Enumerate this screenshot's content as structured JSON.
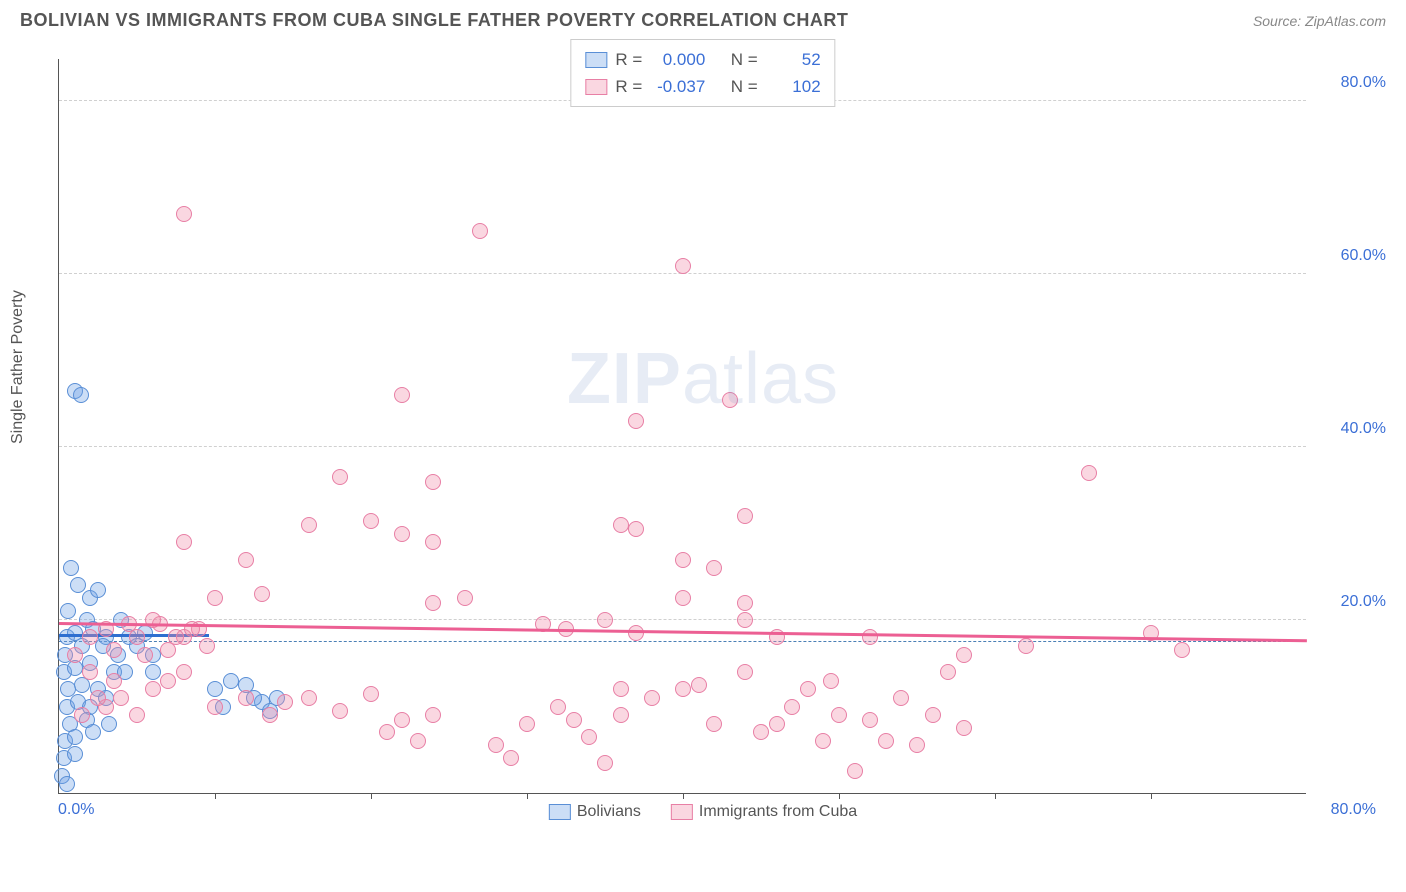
{
  "title": "BOLIVIAN VS IMMIGRANTS FROM CUBA SINGLE FATHER POVERTY CORRELATION CHART",
  "source": "Source: ZipAtlas.com",
  "ylabel": "Single Father Poverty",
  "watermark_a": "ZIP",
  "watermark_b": "atlas",
  "chart": {
    "type": "scatter",
    "xlim": [
      0,
      80
    ],
    "ylim": [
      0,
      85
    ],
    "ytick_values": [
      20,
      40,
      60,
      80
    ],
    "ytick_labels": [
      "20.0%",
      "40.0%",
      "60.0%",
      "80.0%"
    ],
    "xtick_values": [
      10,
      20,
      30,
      40,
      50,
      60,
      70
    ],
    "xaxis_start": "0.0%",
    "xaxis_end": "80.0%",
    "axis_label_color": "#3b6fd6",
    "grid_color": "#d0d0d0",
    "background_color": "#ffffff",
    "marker_radius": 8,
    "dash_y": 17.5,
    "series": [
      {
        "name": "Bolivians",
        "fill": "rgba(110,160,230,0.35)",
        "stroke": "#5a8fd6",
        "R": "0.000",
        "N": "52",
        "trend": {
          "y1": 18.0,
          "y2": 18.0,
          "x2_frac": 0.12,
          "color": "#2e6fd0",
          "width": 3
        },
        "points": [
          [
            1.0,
            46.5
          ],
          [
            1.4,
            46.0
          ],
          [
            0.8,
            26.0
          ],
          [
            1.2,
            24.0
          ],
          [
            2.0,
            22.5
          ],
          [
            2.5,
            23.5
          ],
          [
            0.6,
            21.0
          ],
          [
            1.8,
            20.0
          ],
          [
            0.5,
            18.0
          ],
          [
            1.0,
            18.5
          ],
          [
            2.2,
            19.0
          ],
          [
            3.0,
            18.0
          ],
          [
            0.4,
            16.0
          ],
          [
            1.5,
            17.0
          ],
          [
            2.8,
            17.0
          ],
          [
            0.3,
            14.0
          ],
          [
            1.0,
            14.5
          ],
          [
            2.0,
            15.0
          ],
          [
            3.5,
            14.0
          ],
          [
            0.6,
            12.0
          ],
          [
            1.5,
            12.5
          ],
          [
            2.5,
            12.0
          ],
          [
            0.5,
            10.0
          ],
          [
            1.2,
            10.5
          ],
          [
            2.0,
            10.0
          ],
          [
            3.0,
            11.0
          ],
          [
            0.7,
            8.0
          ],
          [
            1.8,
            8.5
          ],
          [
            0.4,
            6.0
          ],
          [
            1.0,
            6.5
          ],
          [
            2.2,
            7.0
          ],
          [
            3.2,
            8.0
          ],
          [
            0.3,
            4.0
          ],
          [
            1.0,
            4.5
          ],
          [
            0.2,
            2.0
          ],
          [
            0.5,
            1.0
          ],
          [
            4.0,
            20.0
          ],
          [
            4.5,
            18.0
          ],
          [
            3.8,
            16.0
          ],
          [
            4.2,
            14.0
          ],
          [
            5.0,
            17.0
          ],
          [
            5.5,
            18.5
          ],
          [
            6.0,
            16.0
          ],
          [
            6.0,
            14.0
          ],
          [
            10.0,
            12.0
          ],
          [
            10.5,
            10.0
          ],
          [
            12.0,
            12.5
          ],
          [
            13.0,
            10.5
          ],
          [
            14.0,
            11.0
          ],
          [
            11.0,
            13.0
          ],
          [
            12.5,
            11.0
          ],
          [
            13.5,
            9.5
          ]
        ]
      },
      {
        "name": "Immigrants from Cuba",
        "fill": "rgba(240,140,170,0.35)",
        "stroke": "#e87fa5",
        "R": "-0.037",
        "N": "102",
        "trend": {
          "y1": 19.5,
          "y2": 17.5,
          "x2_frac": 1.0,
          "color": "#ec5f93",
          "width": 2.5
        },
        "points": [
          [
            8.0,
            67.0
          ],
          [
            27.0,
            65.0
          ],
          [
            40.0,
            61.0
          ],
          [
            22.0,
            46.0
          ],
          [
            37.0,
            43.0
          ],
          [
            43.0,
            45.5
          ],
          [
            18.0,
            36.5
          ],
          [
            24.0,
            36.0
          ],
          [
            66.0,
            37.0
          ],
          [
            8.0,
            29.0
          ],
          [
            16.0,
            31.0
          ],
          [
            20.0,
            31.5
          ],
          [
            36.0,
            31.0
          ],
          [
            44.0,
            32.0
          ],
          [
            22.0,
            30.0
          ],
          [
            24.0,
            29.0
          ],
          [
            37.0,
            30.5
          ],
          [
            12.0,
            27.0
          ],
          [
            40.0,
            27.0
          ],
          [
            42.0,
            26.0
          ],
          [
            10.0,
            22.5
          ],
          [
            13.0,
            23.0
          ],
          [
            24.0,
            22.0
          ],
          [
            26.0,
            22.5
          ],
          [
            40.0,
            22.5
          ],
          [
            44.0,
            22.0
          ],
          [
            31.0,
            19.5
          ],
          [
            32.5,
            19.0
          ],
          [
            35.0,
            20.0
          ],
          [
            37.0,
            18.5
          ],
          [
            44.0,
            20.0
          ],
          [
            2.0,
            18.0
          ],
          [
            3.0,
            19.0
          ],
          [
            5.0,
            18.0
          ],
          [
            6.5,
            19.5
          ],
          [
            8.0,
            18.0
          ],
          [
            9.0,
            19.0
          ],
          [
            1.0,
            16.0
          ],
          [
            3.5,
            16.5
          ],
          [
            5.5,
            16.0
          ],
          [
            7.0,
            16.5
          ],
          [
            7.5,
            18.0
          ],
          [
            52.0,
            18.0
          ],
          [
            58.0,
            16.0
          ],
          [
            70.0,
            18.5
          ],
          [
            62.0,
            17.0
          ],
          [
            72.0,
            16.5
          ],
          [
            10.0,
            10.0
          ],
          [
            12.0,
            11.0
          ],
          [
            13.5,
            9.0
          ],
          [
            14.5,
            10.5
          ],
          [
            16.0,
            11.0
          ],
          [
            18.0,
            9.5
          ],
          [
            20.0,
            11.5
          ],
          [
            21.0,
            7.0
          ],
          [
            22.0,
            8.5
          ],
          [
            23.0,
            6.0
          ],
          [
            24.0,
            9.0
          ],
          [
            28.0,
            5.5
          ],
          [
            29.0,
            4.0
          ],
          [
            30.0,
            8.0
          ],
          [
            32.0,
            10.0
          ],
          [
            33.0,
            8.5
          ],
          [
            35.0,
            3.5
          ],
          [
            36.0,
            9.0
          ],
          [
            40.0,
            12.0
          ],
          [
            41.0,
            12.5
          ],
          [
            42.0,
            8.0
          ],
          [
            44.0,
            14.0
          ],
          [
            45.0,
            7.0
          ],
          [
            47.0,
            10.0
          ],
          [
            48.0,
            12.0
          ],
          [
            49.5,
            13.0
          ],
          [
            50.0,
            9.0
          ],
          [
            51.0,
            2.5
          ],
          [
            52.0,
            8.5
          ],
          [
            53.0,
            6.0
          ],
          [
            54.0,
            11.0
          ],
          [
            55.0,
            5.5
          ],
          [
            56.0,
            9.0
          ],
          [
            57.0,
            14.0
          ],
          [
            58.0,
            7.5
          ],
          [
            49.0,
            6.0
          ],
          [
            36.0,
            12.0
          ],
          [
            38.0,
            11.0
          ],
          [
            46.0,
            8.0
          ],
          [
            3.0,
            10.0
          ],
          [
            4.0,
            11.0
          ],
          [
            5.0,
            9.0
          ],
          [
            6.0,
            12.0
          ],
          [
            7.0,
            13.0
          ],
          [
            8.0,
            14.0
          ],
          [
            4.5,
            19.5
          ],
          [
            6.0,
            20.0
          ],
          [
            8.5,
            19.0
          ],
          [
            9.5,
            17.0
          ],
          [
            2.0,
            14.0
          ],
          [
            3.5,
            13.0
          ],
          [
            2.5,
            11.0
          ],
          [
            1.5,
            9.0
          ],
          [
            46.0,
            18.0
          ],
          [
            34.0,
            6.5
          ]
        ]
      }
    ]
  }
}
